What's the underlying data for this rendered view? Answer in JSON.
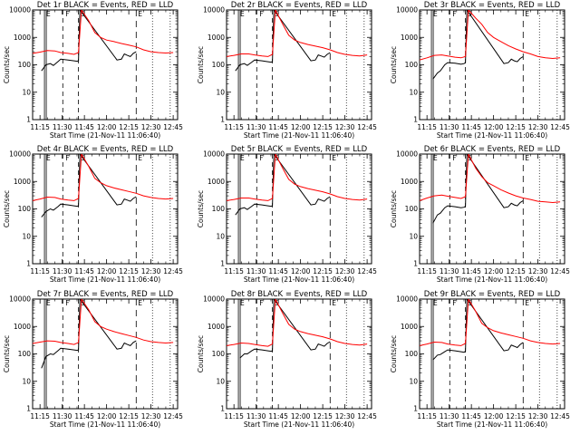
{
  "figure": {
    "xlabel": "Start Time (21-Nov-11 11:06:40)",
    "ylabel": "Counts/sec",
    "x_ticks": [
      "11:15",
      "11:30",
      "11:45",
      "12:00",
      "12:15",
      "12:30",
      "12:45"
    ],
    "y_ticks": [
      "1",
      "10",
      "100",
      "1000",
      "10000"
    ],
    "markers": [
      {
        "label": "E",
        "time": "11:18"
      },
      {
        "label": "F",
        "time": "11:31"
      },
      {
        "label": "S",
        "time": "11:41"
      },
      {
        "label": "E",
        "time": "12:20"
      }
    ],
    "colors": {
      "events": "#000000",
      "lld": "#ff0000",
      "axes": "#000000"
    }
  },
  "chart_data": [
    {
      "type": "line",
      "title": "Det 1r  BLACK = Events, RED = LLD",
      "xlabel": "Start Time (21-Nov-11 11:06:40)",
      "ylabel": "Counts/sec",
      "y_scale": "log",
      "ylim": [
        1,
        10000
      ],
      "xlim": [
        "11:10",
        "12:48"
      ],
      "series": [
        {
          "name": "Events",
          "color": "#000000",
          "x": [
            "11:16",
            "11:19",
            "11:22",
            "11:24",
            "11:27",
            "11:29",
            "11:34",
            "11:38",
            "11:40",
            "11:41",
            "11:42",
            "12:07",
            "12:10",
            "12:12",
            "12:14",
            "12:16",
            "12:18",
            "12:20"
          ],
          "y": [
            60,
            100,
            110,
            95,
            130,
            160,
            150,
            140,
            135,
            140,
            10000,
            150,
            160,
            250,
            220,
            200,
            260,
            300
          ]
        },
        {
          "name": "LLD",
          "color": "#ff0000",
          "x": [
            "11:10",
            "11:15",
            "11:20",
            "11:25",
            "11:29",
            "11:34",
            "11:38",
            "11:41",
            "11:43",
            "11:48",
            "11:52",
            "11:56",
            "12:00",
            "12:05",
            "12:10",
            "12:15",
            "12:20",
            "12:25",
            "12:30",
            "12:35",
            "12:40",
            "12:45"
          ],
          "y": [
            260,
            290,
            330,
            320,
            280,
            260,
            240,
            280,
            10000,
            4000,
            1500,
            1000,
            800,
            700,
            600,
            520,
            450,
            350,
            300,
            280,
            270,
            280
          ]
        }
      ]
    },
    {
      "type": "line",
      "title": "Det 2r  BLACK = Events, RED = LLD",
      "xlabel": "Start Time (21-Nov-11 11:06:40)",
      "ylabel": "Counts/sec",
      "y_scale": "log",
      "ylim": [
        1,
        10000
      ],
      "xlim": [
        "11:10",
        "12:48"
      ],
      "series": [
        {
          "name": "Events",
          "color": "#000000",
          "x": [
            "11:16",
            "11:19",
            "11:22",
            "11:24",
            "11:27",
            "11:29",
            "11:34",
            "11:38",
            "11:40",
            "11:41",
            "11:42",
            "12:07",
            "12:10",
            "12:12",
            "12:14",
            "12:16",
            "12:18",
            "12:20"
          ],
          "y": [
            60,
            100,
            110,
            95,
            125,
            150,
            140,
            130,
            125,
            130,
            10000,
            140,
            150,
            230,
            210,
            190,
            240,
            280
          ]
        },
        {
          "name": "LLD",
          "color": "#ff0000",
          "x": [
            "11:10",
            "11:15",
            "11:20",
            "11:25",
            "11:29",
            "11:34",
            "11:38",
            "11:41",
            "11:43",
            "11:48",
            "11:52",
            "11:56",
            "12:00",
            "12:05",
            "12:10",
            "12:15",
            "12:20",
            "12:25",
            "12:30",
            "12:35",
            "12:40",
            "12:45"
          ],
          "y": [
            200,
            220,
            250,
            250,
            230,
            210,
            200,
            240,
            10000,
            3000,
            1200,
            800,
            650,
            550,
            480,
            420,
            350,
            280,
            240,
            220,
            210,
            230
          ]
        }
      ]
    },
    {
      "type": "line",
      "title": "Det 3r  BLACK = Events, RED = LLD",
      "xlabel": "Start Time (21-Nov-11 11:06:40)",
      "ylabel": "Counts/sec",
      "y_scale": "log",
      "ylim": [
        1,
        10000
      ],
      "xlim": [
        "11:10",
        "12:48"
      ],
      "series": [
        {
          "name": "Events",
          "color": "#000000",
          "x": [
            "11:19",
            "11:22",
            "11:24",
            "11:27",
            "11:29",
            "11:34",
            "11:38",
            "11:40",
            "11:41",
            "11:42",
            "12:07",
            "12:10",
            "12:12",
            "12:14",
            "12:16",
            "12:18",
            "12:20"
          ],
          "y": [
            30,
            50,
            60,
            100,
            120,
            115,
            105,
            110,
            120,
            10000,
            110,
            120,
            160,
            140,
            130,
            170,
            200
          ]
        },
        {
          "name": "LLD",
          "color": "#ff0000",
          "x": [
            "11:10",
            "11:15",
            "11:20",
            "11:25",
            "11:29",
            "11:34",
            "11:38",
            "11:41",
            "11:43",
            "11:48",
            "11:52",
            "11:56",
            "12:00",
            "12:05",
            "12:10",
            "12:15",
            "12:20",
            "12:25",
            "12:30",
            "12:35",
            "12:40",
            "12:45"
          ],
          "y": [
            150,
            180,
            220,
            230,
            210,
            190,
            180,
            200,
            10000,
            5000,
            3000,
            1500,
            1000,
            700,
            500,
            380,
            300,
            250,
            200,
            180,
            170,
            180
          ]
        }
      ]
    },
    {
      "type": "line",
      "title": "Det 4r  BLACK = Events, RED = LLD",
      "xlabel": "Start Time (21-Nov-11 11:06:40)",
      "ylabel": "Counts/sec",
      "y_scale": "log",
      "ylim": [
        1,
        10000
      ],
      "xlim": [
        "11:10",
        "12:48"
      ],
      "series": [
        {
          "name": "Events",
          "color": "#000000",
          "x": [
            "11:16",
            "11:19",
            "11:22",
            "11:24",
            "11:27",
            "11:29",
            "11:34",
            "11:38",
            "11:40",
            "11:41",
            "11:42",
            "12:07",
            "12:10",
            "12:12",
            "12:14",
            "12:16",
            "12:18",
            "12:20"
          ],
          "y": [
            50,
            80,
            100,
            90,
            120,
            150,
            140,
            130,
            125,
            130,
            10000,
            140,
            150,
            230,
            210,
            190,
            240,
            280
          ]
        },
        {
          "name": "LLD",
          "color": "#ff0000",
          "x": [
            "11:10",
            "11:15",
            "11:20",
            "11:25",
            "11:29",
            "11:34",
            "11:38",
            "11:41",
            "11:43",
            "11:48",
            "11:52",
            "11:56",
            "12:00",
            "12:05",
            "12:10",
            "12:15",
            "12:20",
            "12:25",
            "12:30",
            "12:35",
            "12:40",
            "12:45"
          ],
          "y": [
            200,
            230,
            270,
            260,
            230,
            210,
            200,
            240,
            10000,
            3500,
            1300,
            900,
            700,
            580,
            500,
            430,
            370,
            300,
            260,
            240,
            230,
            240
          ]
        }
      ]
    },
    {
      "type": "line",
      "title": "Det 5r  BLACK = Events, RED = LLD",
      "xlabel": "Start Time (21-Nov-11 11:06:40)",
      "ylabel": "Counts/sec",
      "y_scale": "log",
      "ylim": [
        1,
        10000
      ],
      "xlim": [
        "11:10",
        "12:48"
      ],
      "series": [
        {
          "name": "Events",
          "color": "#000000",
          "x": [
            "11:16",
            "11:19",
            "11:22",
            "11:24",
            "11:27",
            "11:29",
            "11:34",
            "11:38",
            "11:40",
            "11:41",
            "11:42",
            "12:07",
            "12:10",
            "12:12",
            "12:14",
            "12:16",
            "12:18",
            "12:20"
          ],
          "y": [
            60,
            100,
            110,
            95,
            125,
            150,
            140,
            130,
            125,
            130,
            10000,
            140,
            150,
            230,
            210,
            190,
            240,
            280
          ]
        },
        {
          "name": "LLD",
          "color": "#ff0000",
          "x": [
            "11:10",
            "11:15",
            "11:20",
            "11:25",
            "11:29",
            "11:34",
            "11:38",
            "11:41",
            "11:43",
            "11:48",
            "11:52",
            "11:56",
            "12:00",
            "12:05",
            "12:10",
            "12:15",
            "12:20",
            "12:25",
            "12:30",
            "12:35",
            "12:40",
            "12:45"
          ],
          "y": [
            200,
            220,
            250,
            250,
            230,
            210,
            200,
            240,
            10000,
            3000,
            1200,
            800,
            650,
            550,
            480,
            420,
            350,
            280,
            240,
            220,
            210,
            230
          ]
        }
      ]
    },
    {
      "type": "line",
      "title": "Det 6r  BLACK = Events, RED = LLD",
      "xlabel": "Start Time (21-Nov-11 11:06:40)",
      "ylabel": "Counts/sec",
      "y_scale": "log",
      "ylim": [
        1,
        10000
      ],
      "xlim": [
        "11:10",
        "12:48"
      ],
      "series": [
        {
          "name": "Events",
          "color": "#000000",
          "x": [
            "11:19",
            "11:22",
            "11:24",
            "11:27",
            "11:29",
            "11:34",
            "11:38",
            "11:40",
            "11:41",
            "11:42",
            "12:07",
            "12:10",
            "12:12",
            "12:14",
            "12:16",
            "12:18",
            "12:20"
          ],
          "y": [
            30,
            60,
            70,
            110,
            130,
            120,
            110,
            115,
            125,
            10000,
            110,
            120,
            160,
            140,
            130,
            170,
            200
          ]
        },
        {
          "name": "LLD",
          "color": "#ff0000",
          "x": [
            "11:10",
            "11:15",
            "11:20",
            "11:25",
            "11:29",
            "11:34",
            "11:38",
            "11:41",
            "11:43",
            "11:48",
            "11:52",
            "11:56",
            "12:00",
            "12:05",
            "12:10",
            "12:15",
            "12:20",
            "12:25",
            "12:30",
            "12:35",
            "12:40",
            "12:45"
          ],
          "y": [
            200,
            250,
            300,
            320,
            290,
            260,
            240,
            280,
            10000,
            3000,
            1500,
            900,
            700,
            500,
            380,
            300,
            250,
            220,
            190,
            180,
            170,
            180
          ]
        }
      ]
    },
    {
      "type": "line",
      "title": "Det 7r  BLACK = Events, RED = LLD",
      "xlabel": "Start Time (21-Nov-11 11:06:40)",
      "ylabel": "Counts/sec",
      "y_scale": "log",
      "ylim": [
        1,
        10000
      ],
      "xlim": [
        "11:10",
        "12:48"
      ],
      "series": [
        {
          "name": "Events",
          "color": "#000000",
          "x": [
            "11:16",
            "11:19",
            "11:22",
            "11:24",
            "11:27",
            "11:29",
            "11:34",
            "11:38",
            "11:40",
            "11:41",
            "11:42",
            "12:07",
            "12:10",
            "12:12",
            "12:14",
            "12:16",
            "12:18",
            "12:20"
          ],
          "y": [
            30,
            80,
            100,
            95,
            130,
            160,
            150,
            140,
            135,
            140,
            10000,
            150,
            160,
            250,
            220,
            200,
            260,
            300
          ]
        },
        {
          "name": "LLD",
          "color": "#ff0000",
          "x": [
            "11:10",
            "11:15",
            "11:20",
            "11:25",
            "11:29",
            "11:34",
            "11:38",
            "11:41",
            "11:43",
            "11:48",
            "11:52",
            "11:56",
            "12:00",
            "12:05",
            "12:10",
            "12:15",
            "12:20",
            "12:25",
            "12:30",
            "12:35",
            "12:40",
            "12:45"
          ],
          "y": [
            240,
            270,
            300,
            290,
            260,
            240,
            220,
            260,
            10000,
            4000,
            1500,
            1000,
            800,
            650,
            550,
            470,
            400,
            320,
            280,
            260,
            250,
            260
          ]
        }
      ]
    },
    {
      "type": "line",
      "title": "Det 8r  BLACK = Events, RED = LLD",
      "xlabel": "Start Time (21-Nov-11 11:06:40)",
      "ylabel": "Counts/sec",
      "y_scale": "log",
      "ylim": [
        1,
        10000
      ],
      "xlim": [
        "11:10",
        "12:48"
      ],
      "series": [
        {
          "name": "Events",
          "color": "#000000",
          "x": [
            "11:19",
            "11:22",
            "11:24",
            "11:27",
            "11:29",
            "11:34",
            "11:38",
            "11:40",
            "11:41",
            "11:42",
            "12:07",
            "12:10",
            "12:12",
            "12:14",
            "12:16",
            "12:18",
            "12:20"
          ],
          "y": [
            70,
            100,
            100,
            130,
            150,
            140,
            130,
            125,
            130,
            10000,
            140,
            150,
            230,
            210,
            190,
            240,
            280
          ]
        },
        {
          "name": "LLD",
          "color": "#ff0000",
          "x": [
            "11:10",
            "11:15",
            "11:20",
            "11:25",
            "11:29",
            "11:34",
            "11:38",
            "11:41",
            "11:43",
            "11:48",
            "11:52",
            "11:56",
            "12:00",
            "12:05",
            "12:10",
            "12:15",
            "12:20",
            "12:25",
            "12:30",
            "12:35",
            "12:40",
            "12:45"
          ],
          "y": [
            200,
            220,
            250,
            240,
            220,
            200,
            190,
            230,
            10000,
            3000,
            1200,
            800,
            650,
            550,
            480,
            420,
            350,
            280,
            240,
            220,
            210,
            230
          ]
        }
      ]
    },
    {
      "type": "line",
      "title": "Det 9r  BLACK = Events, RED = LLD",
      "xlabel": "Start Time (21-Nov-11 11:06:40)",
      "ylabel": "Counts/sec",
      "y_scale": "log",
      "ylim": [
        1,
        10000
      ],
      "xlim": [
        "11:10",
        "12:48"
      ],
      "series": [
        {
          "name": "Events",
          "color": "#000000",
          "x": [
            "11:19",
            "11:22",
            "11:24",
            "11:27",
            "11:29",
            "11:34",
            "11:38",
            "11:40",
            "11:41",
            "11:42",
            "12:07",
            "12:10",
            "12:12",
            "12:14",
            "12:16",
            "12:18",
            "12:20"
          ],
          "y": [
            60,
            90,
            95,
            120,
            140,
            130,
            120,
            115,
            125,
            10000,
            130,
            140,
            210,
            190,
            170,
            220,
            260
          ]
        },
        {
          "name": "LLD",
          "color": "#ff0000",
          "x": [
            "11:10",
            "11:15",
            "11:20",
            "11:25",
            "11:29",
            "11:34",
            "11:38",
            "11:41",
            "11:43",
            "11:48",
            "11:52",
            "11:56",
            "12:00",
            "12:05",
            "12:10",
            "12:15",
            "12:20",
            "12:25",
            "12:30",
            "12:35",
            "12:40",
            "12:45"
          ],
          "y": [
            200,
            230,
            270,
            260,
            230,
            210,
            200,
            240,
            10000,
            3500,
            1300,
            900,
            700,
            580,
            500,
            430,
            370,
            300,
            260,
            240,
            230,
            240
          ]
        }
      ]
    }
  ]
}
